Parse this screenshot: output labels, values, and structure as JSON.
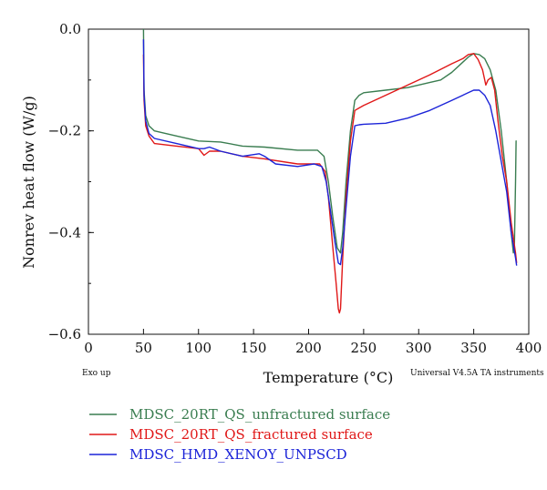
{
  "chart_data": {
    "type": "line",
    "xlabel": "Temperature (°C)",
    "ylabel": "Nonrev heat flow (W/g)",
    "xlim": [
      0,
      400
    ],
    "ylim": [
      -0.6,
      0.0
    ],
    "xticks": [
      0,
      50,
      100,
      150,
      200,
      250,
      300,
      350,
      400
    ],
    "yticks": [
      0.0,
      -0.2,
      -0.4,
      -0.6
    ],
    "ytick_labels": [
      "0.0",
      "−0.2",
      "−0.4",
      "−0.6"
    ],
    "grid": false,
    "legend_position": "bottom-left, below plot",
    "annotations": {
      "left_note": "Exo up",
      "right_note": "Universal V4.5A TA instruments"
    },
    "series": [
      {
        "name": "MDSC_20RT_QS_unfractured surface",
        "color": "#3a7d50",
        "x": [
          50,
          50.5,
          52,
          55,
          60,
          80,
          100,
          120,
          140,
          160,
          190,
          208,
          214,
          218,
          222,
          226,
          229,
          231,
          234,
          238,
          242,
          246,
          250,
          270,
          290,
          310,
          320,
          330,
          340,
          345,
          350,
          355,
          360,
          365,
          370,
          375,
          380,
          384,
          386,
          387,
          388,
          388.5,
          389
        ],
        "y": [
          0.0,
          -0.12,
          -0.17,
          -0.19,
          -0.2,
          -0.21,
          -0.22,
          -0.222,
          -0.23,
          -0.232,
          -0.238,
          -0.238,
          -0.25,
          -0.3,
          -0.37,
          -0.43,
          -0.44,
          -0.4,
          -0.3,
          -0.2,
          -0.14,
          -0.13,
          -0.125,
          -0.12,
          -0.115,
          -0.105,
          -0.1,
          -0.085,
          -0.065,
          -0.055,
          -0.048,
          -0.05,
          -0.058,
          -0.08,
          -0.12,
          -0.2,
          -0.3,
          -0.4,
          -0.44,
          -0.42,
          -0.3,
          -0.22,
          -0.22
        ]
      },
      {
        "name": "MDSC_20RT_QS_fractured surface",
        "color": "#e01818",
        "x": [
          50,
          50.5,
          52,
          55,
          60,
          80,
          100,
          105,
          110,
          120,
          140,
          160,
          190,
          210,
          215,
          218,
          222,
          225,
          227,
          228,
          229,
          231,
          234,
          238,
          242,
          246,
          250,
          270,
          290,
          310,
          330,
          340,
          345,
          350,
          354,
          358,
          361,
          363,
          366,
          369,
          372,
          376,
          380,
          384,
          388,
          389
        ],
        "y": [
          -0.05,
          -0.14,
          -0.19,
          -0.21,
          -0.225,
          -0.23,
          -0.235,
          -0.248,
          -0.24,
          -0.24,
          -0.25,
          -0.255,
          -0.265,
          -0.265,
          -0.28,
          -0.33,
          -0.43,
          -0.5,
          -0.55,
          -0.558,
          -0.55,
          -0.45,
          -0.33,
          -0.22,
          -0.16,
          -0.155,
          -0.15,
          -0.13,
          -0.11,
          -0.09,
          -0.068,
          -0.058,
          -0.05,
          -0.048,
          -0.06,
          -0.08,
          -0.11,
          -0.1,
          -0.095,
          -0.12,
          -0.18,
          -0.25,
          -0.3,
          -0.38,
          -0.44,
          -0.46
        ]
      },
      {
        "name": "MDSC_HMD_XENOY_UNPSCD",
        "color": "#1c24d8",
        "x": [
          50,
          50.5,
          52,
          55,
          60,
          80,
          100,
          105,
          110,
          120,
          140,
          155,
          160,
          170,
          190,
          205,
          212,
          216,
          220,
          224,
          227,
          229,
          231,
          234,
          238,
          242,
          246,
          250,
          270,
          290,
          310,
          330,
          340,
          345,
          350,
          355,
          360,
          365,
          370,
          375,
          380,
          384,
          388,
          389
        ],
        "y": [
          -0.02,
          -0.13,
          -0.18,
          -0.205,
          -0.215,
          -0.225,
          -0.235,
          -0.235,
          -0.232,
          -0.24,
          -0.25,
          -0.245,
          -0.25,
          -0.265,
          -0.27,
          -0.265,
          -0.27,
          -0.3,
          -0.36,
          -0.42,
          -0.46,
          -0.463,
          -0.43,
          -0.35,
          -0.25,
          -0.19,
          -0.188,
          -0.187,
          -0.185,
          -0.175,
          -0.16,
          -0.14,
          -0.13,
          -0.125,
          -0.12,
          -0.12,
          -0.13,
          -0.15,
          -0.2,
          -0.26,
          -0.32,
          -0.4,
          -0.45,
          -0.465
        ]
      }
    ]
  }
}
